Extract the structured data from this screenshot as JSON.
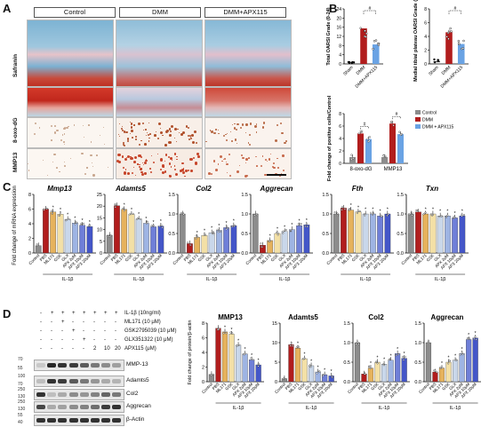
{
  "panels": {
    "A": "A",
    "B": "B",
    "C": "C",
    "D": "D"
  },
  "panelA": {
    "columns": [
      "Control",
      "DMM",
      "DMM+APX115"
    ],
    "row_labels": [
      "Safranin",
      "8-oxo-dG",
      "MMP13"
    ]
  },
  "panelB": {
    "oarsi_total": {
      "ylabel": "Total OARSI Grade (0-24)",
      "ylim": [
        0,
        24
      ],
      "ticks": [
        "0",
        "4",
        "8",
        "12",
        "16",
        "20",
        "24"
      ],
      "categories": [
        "Sham",
        "DMM",
        "DMM+APX115"
      ],
      "values": [
        0.5,
        15.5,
        8.5
      ],
      "sig": "#"
    },
    "oarsi_medial": {
      "ylabel": "Medial tibial plateau OARSI Grade (0-8)",
      "ylim": [
        0,
        8
      ],
      "ticks": [
        "0",
        "2",
        "4",
        "6",
        "8"
      ],
      "categories": [
        "Sham",
        "DMM",
        "DMM+APX115"
      ],
      "values": [
        0.3,
        4.6,
        2.9
      ],
      "sig": "#"
    },
    "fold": {
      "ylabel": "Fold change of positive cells/Control",
      "ylim": [
        0,
        8
      ],
      "ticks": [
        "0",
        "2",
        "4",
        "6",
        "8"
      ],
      "groups": [
        "8-oxo-dG",
        "MMP13"
      ],
      "legend": [
        "Control",
        "DMM",
        "DMM + APX115"
      ],
      "values": [
        [
          1.0,
          4.8,
          3.9
        ],
        [
          1.0,
          6.4,
          4.7
        ]
      ],
      "sig": [
        "#",
        "#"
      ]
    }
  },
  "panelC": {
    "ylabel": "Fold change of mRNA expression",
    "xlabels": [
      "Control",
      "PBS",
      "ML171",
      "GSK",
      "GLX",
      "APX 2μM",
      "APX 10μM",
      "APX 20μM"
    ],
    "il_label": "IL-1β",
    "charts": [
      {
        "title": "Mmp13",
        "ylim": [
          0,
          8
        ],
        "ticks": [
          "0",
          "2",
          "4",
          "6",
          "8"
        ],
        "values": [
          1.0,
          6.0,
          5.6,
          5.3,
          4.6,
          4.1,
          3.8,
          3.6
        ]
      },
      {
        "title": "Adamts5",
        "ylim": [
          0,
          25
        ],
        "ticks": [
          "0",
          "5",
          "10",
          "15",
          "20",
          "25"
        ],
        "values": [
          7.6,
          20.2,
          18.6,
          16.5,
          14.5,
          12.7,
          11.2,
          11.5
        ]
      },
      {
        "title": "Col2",
        "ylim": [
          0,
          1.5
        ],
        "ticks": [
          "0.0",
          "0.5",
          "1.0",
          "1.5"
        ],
        "values": [
          1.0,
          0.24,
          0.4,
          0.45,
          0.52,
          0.58,
          0.65,
          0.7
        ]
      },
      {
        "title": "Aggrecan",
        "ylim": [
          0,
          1.5
        ],
        "ticks": [
          "0.0",
          "0.5",
          "1.0",
          "1.5"
        ],
        "values": [
          1.0,
          0.2,
          0.32,
          0.5,
          0.55,
          0.6,
          0.7,
          0.72
        ]
      },
      {
        "title": "Fth",
        "ylim": [
          0,
          1.5
        ],
        "ticks": [
          "0.0",
          "0.5",
          "1.0",
          "1.5"
        ],
        "values": [
          1.0,
          1.15,
          1.1,
          1.05,
          1.0,
          1.0,
          0.95,
          1.0
        ]
      },
      {
        "title": "Txn",
        "ylim": [
          0,
          1.5
        ],
        "ticks": [
          "0.0",
          "0.5",
          "1.0",
          "1.5"
        ],
        "values": [
          1.0,
          1.05,
          1.0,
          1.0,
          0.95,
          0.95,
          0.9,
          0.95
        ]
      }
    ]
  },
  "panelD": {
    "treatments": [
      {
        "label": "IL-1β (10ng/ml)",
        "marks": [
          "-",
          "+",
          "+",
          "+",
          "+",
          "+",
          "+",
          "+"
        ]
      },
      {
        "label": "ML171 (10 μM)",
        "marks": [
          "-",
          "-",
          "+",
          "-",
          "-",
          "-",
          "-",
          "-"
        ]
      },
      {
        "label": "GSK2795039 (10 μM)",
        "marks": [
          "-",
          "-",
          "-",
          "+",
          "-",
          "-",
          "-",
          "-"
        ]
      },
      {
        "label": "GLX351322 (10 μM)",
        "marks": [
          "-",
          "-",
          "-",
          "-",
          "+",
          "-",
          "-",
          "-"
        ]
      },
      {
        "label": "APX115 (μM)",
        "marks": [
          "-",
          "-",
          "-",
          "-",
          "-",
          "2",
          "10",
          "20"
        ]
      }
    ],
    "blots": [
      "MMP-13",
      "Adamts5",
      "Col2",
      "Aggrecan",
      "β-Actin"
    ],
    "mw": [
      "70",
      "55",
      "100",
      "70",
      "250",
      "130",
      "250",
      "130",
      "55",
      "40"
    ],
    "ylabel": "Fold change of protein/β-actin",
    "xlabels": [
      "Control",
      "PBS",
      "ML171",
      "GSK",
      "GLX",
      "APX 2μM",
      "APX 10μM",
      "APX 20μM"
    ],
    "il_label": "IL-1β",
    "charts": [
      {
        "title": "MMP13",
        "ylim": [
          0,
          8
        ],
        "ticks": [
          "0",
          "2",
          "4",
          "6",
          "8"
        ],
        "values": [
          1.0,
          7.3,
          6.8,
          6.5,
          5.0,
          3.8,
          3.0,
          2.3
        ]
      },
      {
        "title": "Adamts5",
        "ylim": [
          0,
          15
        ],
        "ticks": [
          "0",
          "5",
          "10",
          "15"
        ],
        "values": [
          0.8,
          9.5,
          8.6,
          5.9,
          4.1,
          2.5,
          1.8,
          1.5
        ]
      },
      {
        "title": "Col2",
        "ylim": [
          0,
          1.5
        ],
        "ticks": [
          "0.0",
          "0.5",
          "1.0",
          "1.5"
        ],
        "values": [
          1.0,
          0.2,
          0.35,
          0.5,
          0.45,
          0.55,
          0.72,
          0.6
        ]
      },
      {
        "title": "Aggrecan",
        "ylim": [
          0,
          1.5
        ],
        "ticks": [
          "0.0",
          "0.5",
          "1.0",
          "1.5"
        ],
        "values": [
          1.0,
          0.25,
          0.35,
          0.5,
          0.55,
          0.72,
          1.08,
          1.12
        ]
      }
    ]
  },
  "colors": {
    "bars": [
      "#8c8c8c",
      "#b11d1d",
      "#e6b25c",
      "#f3e0a6",
      "#c9d7ea",
      "#9eb4e3",
      "#6f7fd8",
      "#4456c8"
    ],
    "groupbars": [
      "#8c8c8c",
      "#b11d1d",
      "#6aa3e4"
    ],
    "sham": "#222222",
    "dmm": "#b11d1d",
    "apx": "#6aa3e4"
  }
}
